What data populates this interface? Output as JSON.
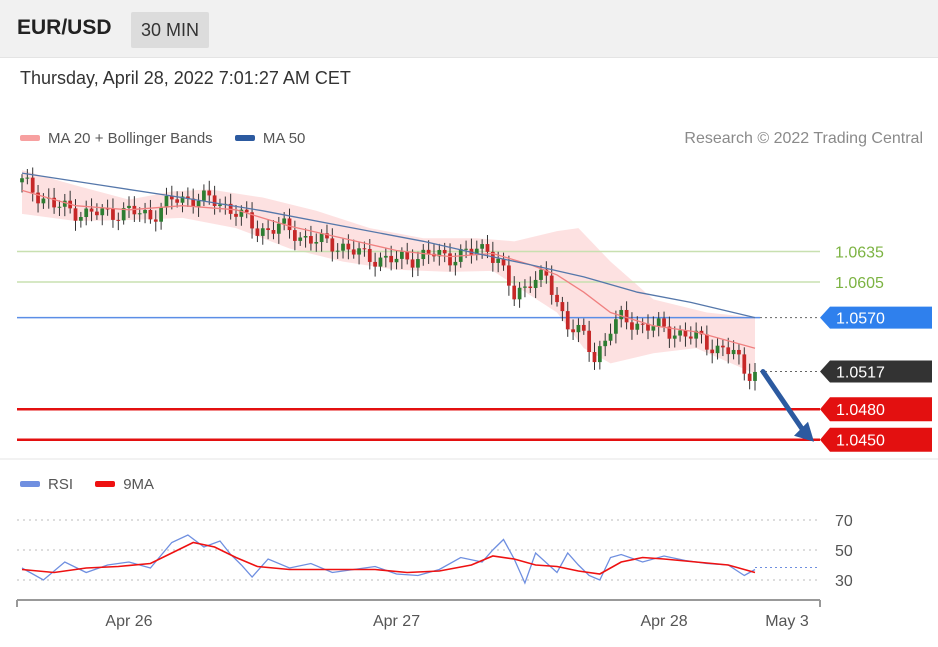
{
  "header": {
    "pair": "EUR/USD",
    "timeframe": "30 MIN",
    "datetime": "Thursday, April 28, 2022 7:01:27 AM CET"
  },
  "legend": {
    "ma20": {
      "label": "MA 20 + Bollinger Bands",
      "color": "#f08080"
    },
    "ma50": {
      "label": "MA 50",
      "color": "#2c5aa0"
    },
    "copyright": "Research © 2022 Trading Central"
  },
  "rsi_legend": {
    "rsi": {
      "label": "RSI",
      "color": "#6f8fe0"
    },
    "ma9": {
      "label": "9MA",
      "color": "#ee1111"
    }
  },
  "chart_data": [
    {
      "type": "candlestick",
      "title": "",
      "ylim": [
        1.0435,
        1.072
      ],
      "bars": 145,
      "x_ticks": [
        {
          "label": "Apr 26",
          "bar": 20
        },
        {
          "label": "Apr 27",
          "bar": 70
        },
        {
          "label": "Apr 28",
          "bar": 120
        },
        {
          "label": "May 3",
          "bar": 140
        }
      ],
      "close_path": [
        [
          0,
          1.0703
        ],
        [
          6,
          1.068
        ],
        [
          12,
          1.0672
        ],
        [
          20,
          1.0674
        ],
        [
          24,
          1.067
        ],
        [
          28,
          1.0685
        ],
        [
          33,
          1.0688
        ],
        [
          37,
          1.0682
        ],
        [
          40,
          1.0675
        ],
        [
          44,
          1.0655
        ],
        [
          48,
          1.066
        ],
        [
          52,
          1.065
        ],
        [
          56,
          1.0644
        ],
        [
          60,
          1.064
        ],
        [
          64,
          1.063
        ],
        [
          70,
          1.0626
        ],
        [
          76,
          1.0632
        ],
        [
          80,
          1.063
        ],
        [
          84,
          1.0634
        ],
        [
          87,
          1.064
        ],
        [
          89,
          1.0625
        ],
        [
          92,
          1.059
        ],
        [
          95,
          1.0608
        ],
        [
          98,
          1.0608
        ],
        [
          100,
          1.0585
        ],
        [
          102,
          1.0565
        ],
        [
          105,
          1.055
        ],
        [
          107,
          1.053
        ],
        [
          110,
          1.056
        ],
        [
          112,
          1.0568
        ],
        [
          114,
          1.0565
        ],
        [
          118,
          1.0561
        ],
        [
          122,
          1.0556
        ],
        [
          126,
          1.055
        ],
        [
          130,
          1.054
        ],
        [
          133,
          1.0535
        ],
        [
          135,
          1.0518
        ],
        [
          137,
          1.0517
        ]
      ],
      "ma20_path": [
        [
          0,
          1.0695
        ],
        [
          10,
          1.068
        ],
        [
          20,
          1.0676
        ],
        [
          30,
          1.068
        ],
        [
          40,
          1.0676
        ],
        [
          50,
          1.066
        ],
        [
          60,
          1.0648
        ],
        [
          70,
          1.0636
        ],
        [
          80,
          1.063
        ],
        [
          88,
          1.0633
        ],
        [
          95,
          1.0622
        ],
        [
          100,
          1.0612
        ],
        [
          105,
          1.0595
        ],
        [
          110,
          1.0575
        ],
        [
          118,
          1.0562
        ],
        [
          126,
          1.0556
        ],
        [
          137,
          1.054
        ]
      ],
      "bb_upper_path": [
        [
          0,
          1.0715
        ],
        [
          10,
          1.07
        ],
        [
          20,
          1.0686
        ],
        [
          28,
          1.0694
        ],
        [
          35,
          1.0696
        ],
        [
          45,
          1.0688
        ],
        [
          55,
          1.0675
        ],
        [
          65,
          1.0658
        ],
        [
          75,
          1.0648
        ],
        [
          85,
          1.0648
        ],
        [
          92,
          1.0645
        ],
        [
          100,
          1.0655
        ],
        [
          104,
          1.0658
        ],
        [
          110,
          1.0625
        ],
        [
          118,
          1.0588
        ],
        [
          128,
          1.0575
        ],
        [
          137,
          1.057
        ]
      ],
      "bb_lower_path": [
        [
          0,
          1.0672
        ],
        [
          10,
          1.0665
        ],
        [
          20,
          1.0666
        ],
        [
          30,
          1.0668
        ],
        [
          40,
          1.0658
        ],
        [
          50,
          1.0638
        ],
        [
          60,
          1.0625
        ],
        [
          70,
          1.0617
        ],
        [
          80,
          1.0615
        ],
        [
          88,
          1.0616
        ],
        [
          95,
          1.0592
        ],
        [
          100,
          1.0575
        ],
        [
          105,
          1.054
        ],
        [
          110,
          1.0525
        ],
        [
          118,
          1.0535
        ],
        [
          126,
          1.054
        ],
        [
          137,
          1.0515
        ]
      ],
      "ma50_path": [
        [
          0,
          1.0712
        ],
        [
          15,
          1.07
        ],
        [
          30,
          1.0688
        ],
        [
          45,
          1.0675
        ],
        [
          60,
          1.066
        ],
        [
          75,
          1.0645
        ],
        [
          85,
          1.0633
        ],
        [
          95,
          1.0622
        ],
        [
          105,
          1.061
        ],
        [
          115,
          1.0595
        ],
        [
          125,
          1.0585
        ],
        [
          137,
          1.057
        ]
      ],
      "levels": [
        {
          "value": 1.0635,
          "label": "1.0635",
          "kind": "resistance",
          "color": "#7cb342"
        },
        {
          "value": 1.0605,
          "label": "1.0605",
          "kind": "resistance",
          "color": "#7cb342"
        },
        {
          "value": 1.057,
          "label": "1.0570",
          "kind": "pivot",
          "color": "#2f80ed"
        },
        {
          "value": 1.0517,
          "label": "1.0517",
          "kind": "last",
          "color": "#333333"
        },
        {
          "value": 1.048,
          "label": "1.0480",
          "kind": "support",
          "color": "#e31010"
        },
        {
          "value": 1.045,
          "label": "1.0450",
          "kind": "support",
          "color": "#e31010"
        }
      ],
      "forecast_arrow": {
        "from": [
          137,
          1.0517
        ],
        "to": [
          145,
          1.0452
        ]
      }
    },
    {
      "type": "line",
      "title": "",
      "ylim": [
        20,
        80
      ],
      "y_ticks": [
        30,
        50,
        70
      ],
      "series": [
        {
          "name": "RSI",
          "color": "#6f8fe0",
          "path": [
            [
              0,
              38
            ],
            [
              4,
              30
            ],
            [
              8,
              42
            ],
            [
              12,
              35
            ],
            [
              16,
              40
            ],
            [
              20,
              42
            ],
            [
              24,
              38
            ],
            [
              28,
              55
            ],
            [
              31,
              60
            ],
            [
              34,
              52
            ],
            [
              37,
              56
            ],
            [
              39,
              47
            ],
            [
              41,
              40
            ],
            [
              43,
              32
            ],
            [
              46,
              44
            ],
            [
              50,
              38
            ],
            [
              54,
              41
            ],
            [
              58,
              35
            ],
            [
              62,
              37
            ],
            [
              66,
              39
            ],
            [
              70,
              34
            ],
            [
              74,
              33
            ],
            [
              78,
              37
            ],
            [
              82,
              45
            ],
            [
              86,
              42
            ],
            [
              88,
              50
            ],
            [
              90,
              57
            ],
            [
              92,
              44
            ],
            [
              94,
              28
            ],
            [
              96,
              48
            ],
            [
              100,
              35
            ],
            [
              102,
              48
            ],
            [
              104,
              40
            ],
            [
              106,
              33
            ],
            [
              108,
              30
            ],
            [
              110,
              45
            ],
            [
              112,
              47
            ],
            [
              116,
              42
            ],
            [
              120,
              46
            ],
            [
              124,
              43
            ],
            [
              128,
              41
            ],
            [
              132,
              40
            ],
            [
              135,
              33
            ],
            [
              137,
              37
            ]
          ]
        },
        {
          "name": "9MA",
          "color": "#ee1111",
          "path": [
            [
              0,
              37
            ],
            [
              6,
              35
            ],
            [
              12,
              38
            ],
            [
              18,
              39
            ],
            [
              24,
              41
            ],
            [
              28,
              48
            ],
            [
              32,
              55
            ],
            [
              36,
              52
            ],
            [
              40,
              45
            ],
            [
              44,
              39
            ],
            [
              50,
              37
            ],
            [
              58,
              37
            ],
            [
              66,
              37
            ],
            [
              72,
              35
            ],
            [
              78,
              36
            ],
            [
              84,
              40
            ],
            [
              88,
              46
            ],
            [
              92,
              44
            ],
            [
              96,
              40
            ],
            [
              100,
              39
            ],
            [
              104,
              36
            ],
            [
              108,
              34
            ],
            [
              112,
              42
            ],
            [
              116,
              45
            ],
            [
              120,
              44
            ],
            [
              126,
              42
            ],
            [
              132,
              40
            ],
            [
              137,
              35
            ]
          ]
        }
      ]
    }
  ]
}
